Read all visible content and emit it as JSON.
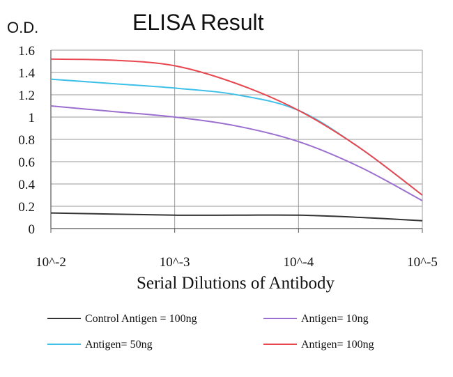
{
  "chart_data": {
    "type": "line",
    "title": "ELISA Result",
    "ylabel": "O.D.",
    "xlabel": "Serial Dilutions of Antibody",
    "x_tick_labels": [
      "10^-2",
      "10^-3",
      "10^-4",
      "10^-5"
    ],
    "y_tick_labels": [
      "0",
      "0.2",
      "0.4",
      "0.6",
      "0.8",
      "1",
      "1.2",
      "1.4",
      "1.6"
    ],
    "ylim": [
      0,
      1.6
    ],
    "xlim": [
      -2,
      -5
    ],
    "x_scale": "log10",
    "grid": "vertical-and-horizontal",
    "legend_position": "bottom",
    "x": [
      -2,
      -2.5,
      -3,
      -3.5,
      -4,
      -4.5,
      -5
    ],
    "series": [
      {
        "name": "Control Antigen = 100ng",
        "color": "#333333",
        "values": [
          0.14,
          0.13,
          0.12,
          0.12,
          0.12,
          0.1,
          0.07
        ]
      },
      {
        "name": "Antigen= 10ng",
        "color": "#9B6FCF",
        "values": [
          1.1,
          1.05,
          1.0,
          0.92,
          0.78,
          0.55,
          0.25
        ]
      },
      {
        "name": "Antigen= 50ng",
        "color": "#3FC0E8",
        "values": [
          1.34,
          1.3,
          1.26,
          1.2,
          1.06,
          0.72,
          0.3
        ]
      },
      {
        "name": "Antigen= 100ng",
        "color": "#E8474F",
        "values": [
          1.52,
          1.51,
          1.46,
          1.3,
          1.06,
          0.72,
          0.3
        ]
      }
    ]
  }
}
